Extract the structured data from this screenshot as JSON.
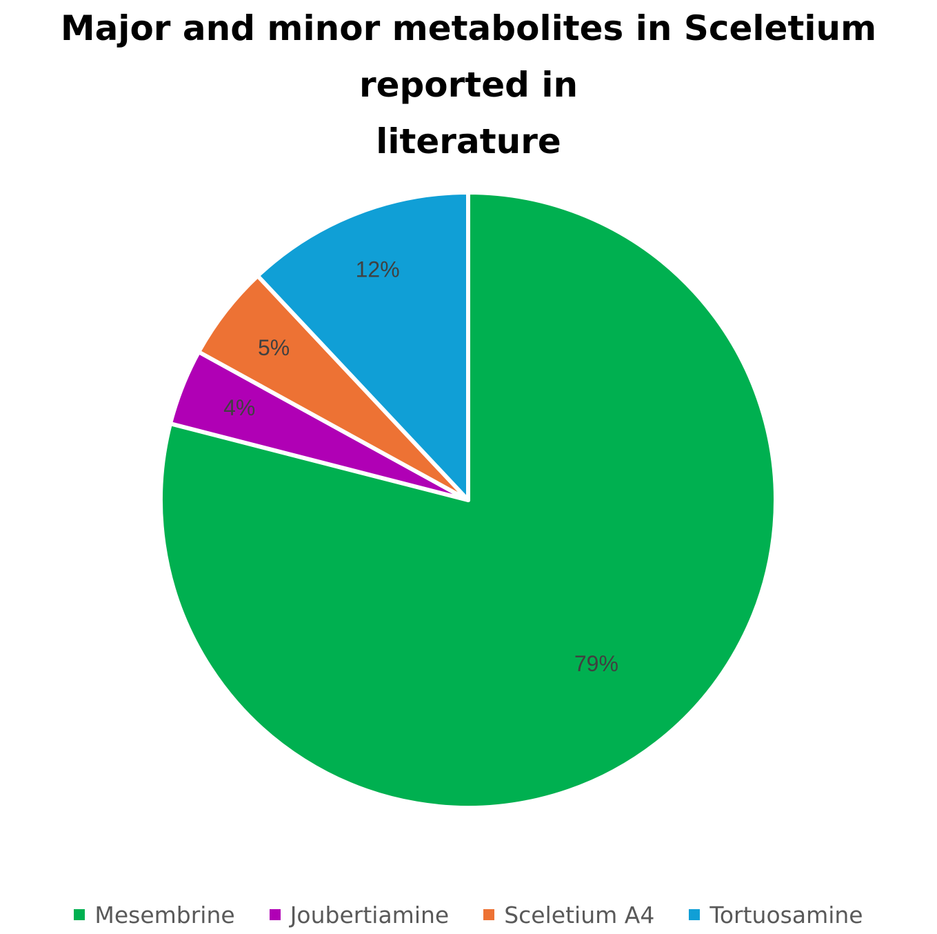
{
  "chart_data": {
    "type": "pie",
    "title": "Major and minor metabolites in Sceletium reported in literature",
    "title_lines": [
      "Major and minor metabolites in Sceletium reported in",
      "literature"
    ],
    "categories": [
      "Mesembrine",
      "Joubertiamine",
      "Sceletium A4",
      "Tortuosamine"
    ],
    "values": [
      79,
      4,
      5,
      12
    ],
    "data_labels": [
      "79%",
      "4%",
      "5%",
      "12%"
    ],
    "colors": [
      "#00B050",
      "#B000B5",
      "#ED7234",
      "#109FD6"
    ],
    "start_angle": "12 o'clock",
    "direction": "clockwise",
    "legend_position": "bottom"
  }
}
